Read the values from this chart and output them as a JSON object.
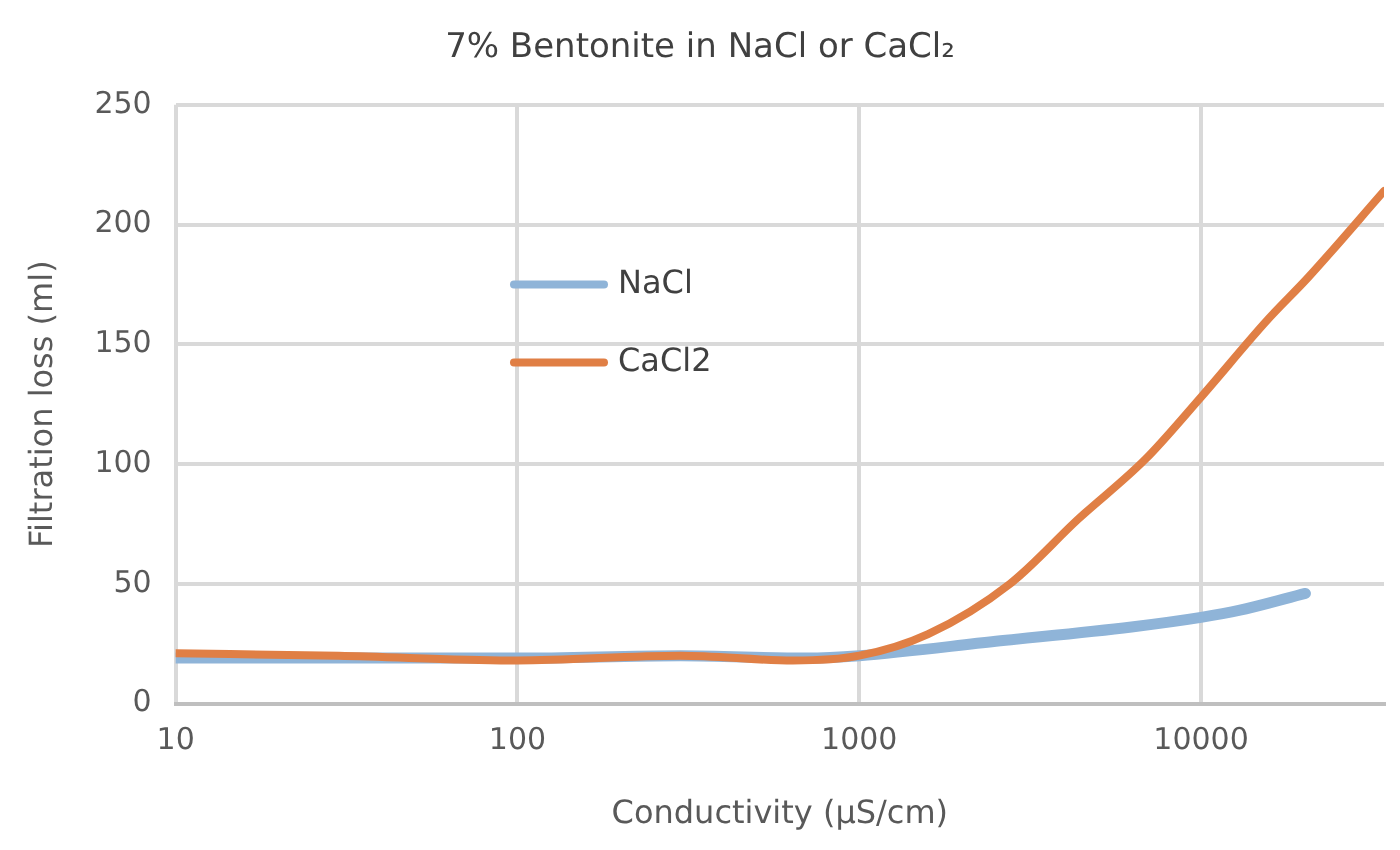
{
  "chart_data": {
    "type": "line",
    "title": "7% Bentonite in NaCl or CaCl₂",
    "xlabel": "Conductivity (µS/cm)",
    "ylabel": "Filtration loss (ml)",
    "log": "x",
    "xlim": [
      10,
      34300
    ],
    "xticks": [
      10,
      100,
      1000,
      10000
    ],
    "ylim": [
      0,
      250
    ],
    "yticks": [
      0,
      50,
      100,
      150,
      200,
      250
    ],
    "grid": true,
    "legend": "left",
    "marker": "none",
    "series": [
      {
        "name": "NaCl",
        "color": "#8fb4d8",
        "x": [
          10,
          30,
          100,
          300,
          700,
          1000,
          2510,
          6260,
          10000,
          13000,
          20200
        ],
        "values": [
          19,
          19,
          19,
          20,
          19,
          20,
          26,
          32,
          36,
          39,
          46
        ]
      },
      {
        "name": "CaCl2",
        "color": "#e07f45",
        "x": [
          10,
          30,
          100,
          300,
          640,
          1000,
          1590,
          2760,
          4370,
          6870,
          10000,
          15600,
          20600,
          34300
        ],
        "values": [
          21,
          20,
          18,
          20,
          18,
          20,
          29,
          50,
          77,
          102,
          128,
          160,
          178,
          214
        ]
      }
    ]
  }
}
